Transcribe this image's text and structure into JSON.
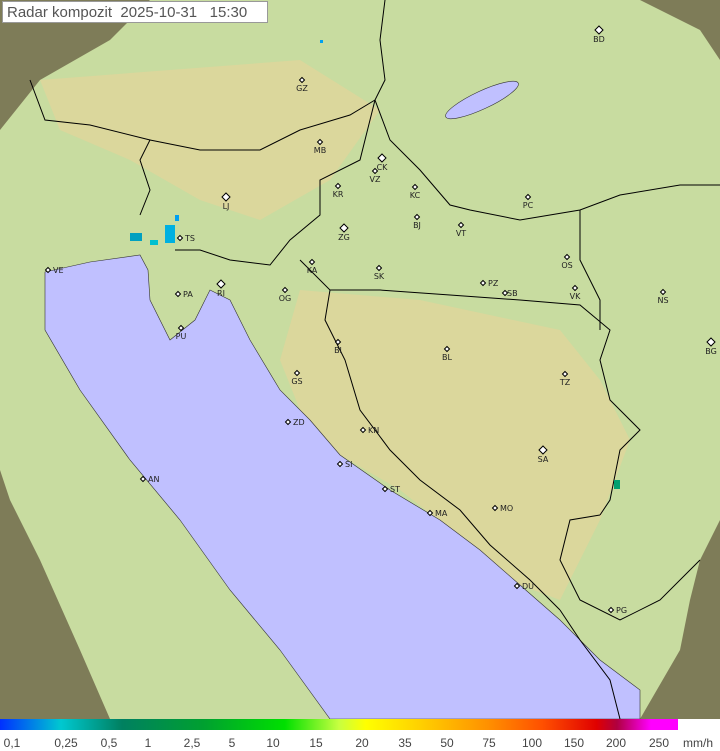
{
  "title": {
    "label": "Radar kompozit",
    "date": "2025-10-31",
    "time": "15:30"
  },
  "map": {
    "cities": [
      "GZ",
      "BD",
      "MB",
      "CK",
      "VZ",
      "KR",
      "KC",
      "LJ",
      "PC",
      "BJ",
      "VT",
      "ZG",
      "TS",
      "VE",
      "RI",
      "KA",
      "SK",
      "OS",
      "PA",
      "OG",
      "PZ",
      "SB",
      "VK",
      "NS",
      "PU",
      "BI",
      "BL",
      "BG",
      "GS",
      "TZ",
      "ZD",
      "KN",
      "SA",
      "SI",
      "AN",
      "ST",
      "MA",
      "MO",
      "DU",
      "PG"
    ],
    "colors": {
      "sea": "#c0c0ff",
      "land": "#c8dca0",
      "outside_coverage": "#7e7c58",
      "border": "#000000"
    }
  },
  "legend": {
    "ticks": [
      "0,1",
      "0,25",
      "0,5",
      "1",
      "2,5",
      "5",
      "10",
      "15",
      "20",
      "35",
      "50",
      "75",
      "100",
      "150",
      "200",
      "250"
    ],
    "unit": "mm/h"
  }
}
